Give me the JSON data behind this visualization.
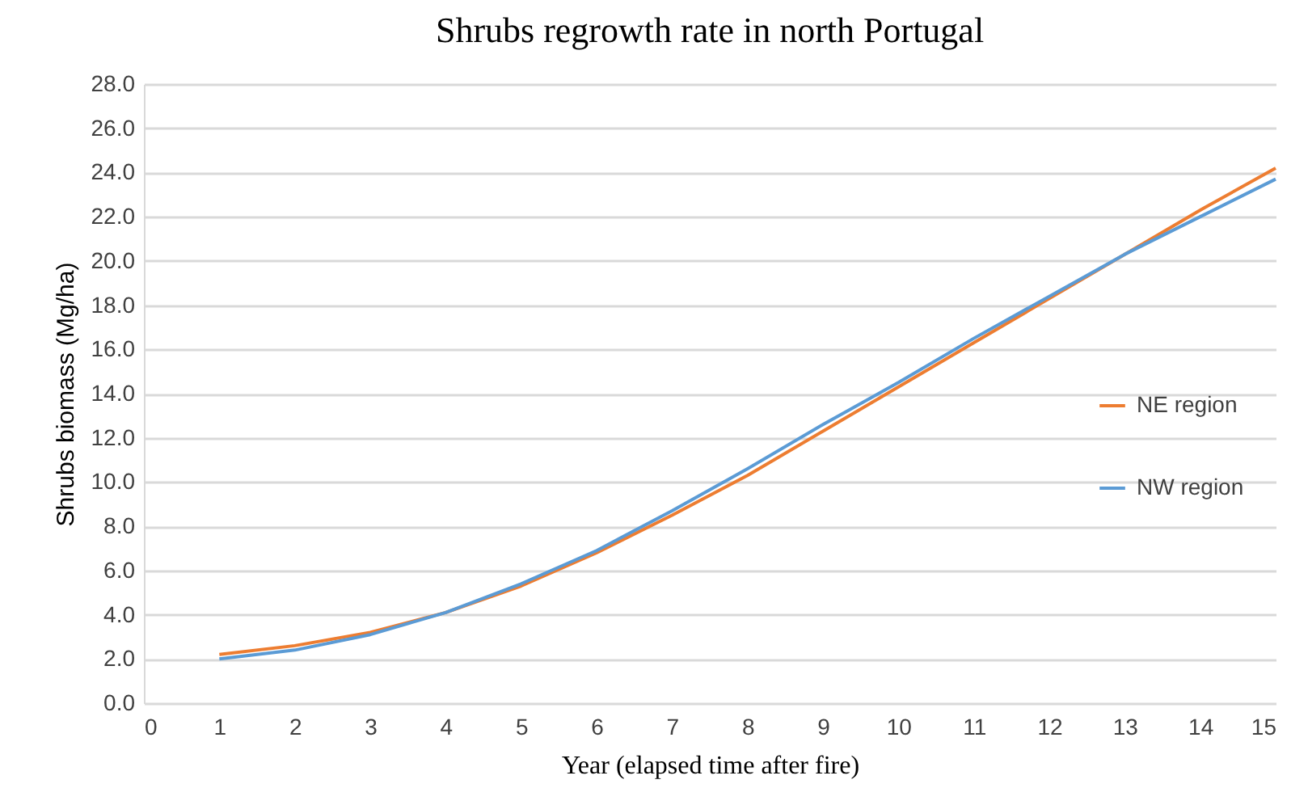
{
  "chart_data": {
    "type": "line",
    "title": "Shrubs regrowth rate in north Portugal",
    "xlabel": "Year (elapsed time after fire)",
    "ylabel": "Shrubs biomass (Mg/ha)",
    "x": [
      1,
      2,
      3,
      4,
      5,
      6,
      7,
      8,
      9,
      10,
      11,
      12,
      13,
      14,
      15
    ],
    "series": [
      {
        "name": "NE region",
        "color": "#ed7d31",
        "values": [
          2.2,
          2.6,
          3.2,
          4.1,
          5.3,
          6.8,
          8.5,
          10.3,
          12.3,
          14.3,
          16.3,
          18.3,
          20.3,
          22.3,
          24.2
        ]
      },
      {
        "name": "NW region",
        "color": "#5b9bd5",
        "values": [
          2.0,
          2.4,
          3.1,
          4.1,
          5.4,
          6.9,
          8.7,
          10.6,
          12.6,
          14.5,
          16.5,
          18.4,
          20.3,
          22.0,
          23.7
        ]
      }
    ],
    "xlim": [
      0,
      15
    ],
    "xticks": [
      0,
      1,
      2,
      3,
      4,
      5,
      6,
      7,
      8,
      9,
      10,
      11,
      12,
      13,
      14,
      15
    ],
    "ylim": [
      0,
      28
    ],
    "yticks": [
      {
        "value": 0,
        "label": "0.0"
      },
      {
        "value": 2,
        "label": "2.0"
      },
      {
        "value": 4,
        "label": "4.0"
      },
      {
        "value": 6,
        "label": "6.0"
      },
      {
        "value": 8,
        "label": "8.0"
      },
      {
        "value": 10,
        "label": "10.0"
      },
      {
        "value": 12,
        "label": "12.0"
      },
      {
        "value": 14,
        "label": "14.0"
      },
      {
        "value": 16,
        "label": "16.0"
      },
      {
        "value": 18,
        "label": "18.0"
      },
      {
        "value": 20,
        "label": "20.0"
      },
      {
        "value": 22,
        "label": "22.0"
      },
      {
        "value": 24,
        "label": "24.0"
      },
      {
        "value": 26,
        "label": "26.0"
      },
      {
        "value": 28,
        "label": "28.0"
      }
    ],
    "grid": "y",
    "legend": "right",
    "marker": "none",
    "line_style": "solid"
  }
}
